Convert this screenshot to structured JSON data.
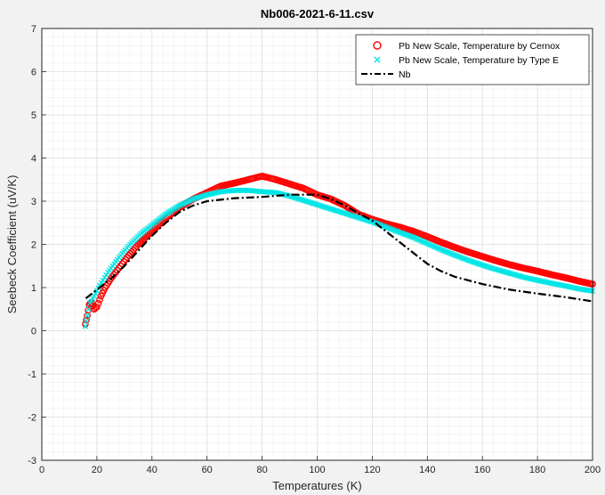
{
  "chart_data": {
    "type": "line",
    "title": "Nb006-2021-6-11.csv",
    "xlabel": "Temperatures (K)",
    "ylabel": "Seebeck Coefficient (uV/K)",
    "xlim": [
      0,
      200
    ],
    "ylim": [
      -3,
      7
    ],
    "x_ticks": [
      "0",
      "20",
      "40",
      "60",
      "80",
      "100",
      "120",
      "140",
      "160",
      "180",
      "200"
    ],
    "y_ticks": [
      "-3",
      "-2",
      "-1",
      "0",
      "1",
      "2",
      "3",
      "4",
      "5",
      "6",
      "7"
    ],
    "grid": "on (major and minor)",
    "legend_position": "top-right",
    "colors": {
      "cernox": "#ff0000",
      "typeE": "#00e5e5",
      "nb": "#000000"
    },
    "series": [
      {
        "name": "Pb New Scale, Temperature by Cernox",
        "marker": "circle",
        "x": [
          15.8,
          16.5,
          17.2,
          18,
          19,
          20,
          21.5,
          23,
          25,
          28,
          31,
          35,
          40,
          45,
          50,
          55,
          60,
          65,
          70,
          75,
          78,
          80,
          82,
          85,
          90,
          95,
          100,
          105,
          110,
          115,
          120,
          125,
          130,
          135,
          140,
          145,
          150,
          155,
          160,
          165,
          170,
          175,
          180,
          185,
          190,
          195,
          200
        ],
        "y": [
          0.15,
          0.35,
          0.6,
          0.65,
          0.5,
          0.55,
          0.8,
          1.0,
          1.2,
          1.45,
          1.7,
          2.0,
          2.3,
          2.6,
          2.85,
          3.05,
          3.2,
          3.35,
          3.42,
          3.5,
          3.55,
          3.58,
          3.55,
          3.5,
          3.4,
          3.3,
          3.15,
          3.05,
          2.9,
          2.7,
          2.58,
          2.48,
          2.4,
          2.3,
          2.18,
          2.05,
          1.93,
          1.82,
          1.72,
          1.62,
          1.53,
          1.45,
          1.38,
          1.3,
          1.23,
          1.15,
          1.08
        ]
      },
      {
        "name": "Pb New Scale, Temperature by Type E",
        "marker": "x",
        "x": [
          15.8,
          16.5,
          17.5,
          19,
          21,
          24,
          28,
          32,
          36,
          40,
          45,
          50,
          55,
          60,
          65,
          70,
          75,
          80,
          85,
          90,
          95,
          100,
          105,
          110,
          115,
          120,
          125,
          130,
          135,
          140,
          145,
          150,
          155,
          160,
          165,
          170,
          175,
          180,
          185,
          190,
          195,
          200
        ],
        "y": [
          0.1,
          0.35,
          0.65,
          0.8,
          1.05,
          1.35,
          1.7,
          2.0,
          2.25,
          2.45,
          2.7,
          2.9,
          3.05,
          3.15,
          3.22,
          3.25,
          3.25,
          3.22,
          3.2,
          3.12,
          3.02,
          2.92,
          2.82,
          2.72,
          2.62,
          2.52,
          2.4,
          2.28,
          2.16,
          2.02,
          1.88,
          1.75,
          1.63,
          1.52,
          1.42,
          1.33,
          1.24,
          1.17,
          1.1,
          1.04,
          0.97,
          0.92
        ]
      },
      {
        "name": "Nb",
        "marker": "dash-dot",
        "x": [
          16,
          20,
          25,
          30,
          35,
          40,
          45,
          50,
          55,
          60,
          70,
          80,
          90,
          100,
          105,
          110,
          115,
          120,
          125,
          130,
          135,
          140,
          145,
          150,
          160,
          170,
          180,
          190,
          200
        ],
        "y": [
          0.75,
          0.95,
          1.2,
          1.5,
          1.85,
          2.2,
          2.5,
          2.75,
          2.9,
          3.0,
          3.07,
          3.1,
          3.15,
          3.15,
          3.05,
          2.9,
          2.72,
          2.55,
          2.3,
          2.05,
          1.8,
          1.55,
          1.38,
          1.25,
          1.08,
          0.95,
          0.86,
          0.78,
          0.68
        ]
      }
    ]
  }
}
